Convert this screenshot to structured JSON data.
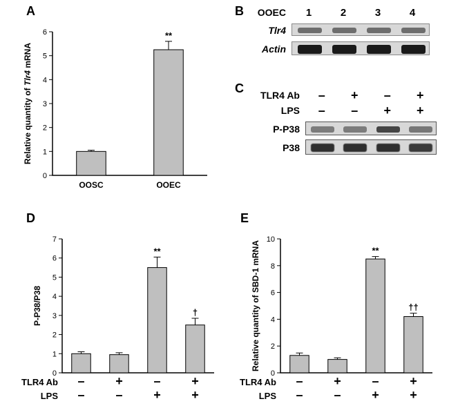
{
  "panels": {
    "A": {
      "label": "A"
    },
    "B": {
      "label": "B"
    },
    "C": {
      "label": "C"
    },
    "D": {
      "label": "D"
    },
    "E": {
      "label": "E"
    }
  },
  "chartA": {
    "type": "bar",
    "ylabel": "Relative quantity of Tlr4 mRNA",
    "ylim": [
      0,
      6
    ],
    "ytick_step": 1,
    "categories": [
      "OOSC",
      "OOEC"
    ],
    "values": [
      1.0,
      5.25
    ],
    "errors": [
      0.05,
      0.35
    ],
    "sig_marks": [
      "",
      "**"
    ],
    "bar_color": "#bfbfbf",
    "bar_width": 0.38,
    "bg": "#ffffff",
    "label_fontsize": 12
  },
  "blotB": {
    "header_label": "OOEC",
    "lanes": [
      "1",
      "2",
      "3",
      "4"
    ],
    "rows": [
      {
        "name": "Tlr4",
        "italic": true,
        "track_h": 18,
        "band_color": "#444444",
        "band_h": 8,
        "intensities": [
          0.55,
          0.55,
          0.55,
          0.55
        ]
      },
      {
        "name": "Actin",
        "italic": true,
        "track_h": 20,
        "band_color": "#1a1a1a",
        "band_h": 13,
        "intensities": [
          1,
          1,
          1,
          1
        ]
      }
    ]
  },
  "blotC": {
    "conditions": [
      {
        "label": "TLR4 Ab",
        "marks": [
          "–",
          "+",
          "–",
          "+"
        ]
      },
      {
        "label": "LPS",
        "marks": [
          "–",
          "–",
          "+",
          "+"
        ]
      }
    ],
    "rows": [
      {
        "name": "P-P38",
        "track_h": 20,
        "band_color": "#3a3a3a",
        "band_h": 9,
        "intensities": [
          0.35,
          0.35,
          0.9,
          0.4
        ]
      },
      {
        "name": "P38",
        "track_h": 22,
        "band_color": "#2a2a2a",
        "band_h": 12,
        "intensities": [
          0.95,
          0.95,
          0.95,
          0.85
        ],
        "smear": true
      }
    ]
  },
  "chartD": {
    "type": "bar",
    "ylabel": "P-P38/P38",
    "ylim": [
      0,
      7
    ],
    "ytick_step": 1,
    "values": [
      1.0,
      0.95,
      5.5,
      2.5
    ],
    "errors": [
      0.1,
      0.1,
      0.55,
      0.35
    ],
    "sig_marks": [
      "",
      "",
      "**",
      "†"
    ],
    "bar_color": "#bfbfbf",
    "bar_width": 0.5,
    "conditions": [
      {
        "label": "TLR4 Ab",
        "marks": [
          "–",
          "+",
          "–",
          "+"
        ]
      },
      {
        "label": "LPS",
        "marks": [
          "–",
          "–",
          "+",
          "+"
        ]
      }
    ]
  },
  "chartE": {
    "type": "bar",
    "ylabel": "Relative quantity of SBD-1 mRNA",
    "ylim": [
      0,
      10
    ],
    "ytick_step": 2,
    "values": [
      1.3,
      1.0,
      8.5,
      4.2
    ],
    "errors": [
      0.18,
      0.12,
      0.18,
      0.25
    ],
    "sig_marks": [
      "",
      "",
      "**",
      "††"
    ],
    "bar_color": "#bfbfbf",
    "bar_width": 0.5,
    "conditions": [
      {
        "label": "TLR4 Ab",
        "marks": [
          "–",
          "+",
          "–",
          "+"
        ]
      },
      {
        "label": "LPS",
        "marks": [
          "–",
          "–",
          "+",
          "+"
        ]
      }
    ]
  }
}
